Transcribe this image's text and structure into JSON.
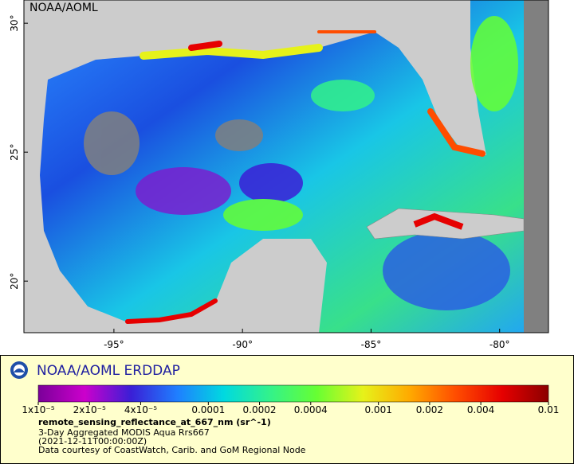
{
  "map": {
    "corner_label": "NOAA/AOML",
    "xlim": [
      -98.5,
      -78.1
    ],
    "ylim": [
      18,
      30.9
    ],
    "xticks": [
      {
        "value": -95,
        "label": "-95°"
      },
      {
        "value": -90,
        "label": "-90°"
      },
      {
        "value": -85,
        "label": "-85°"
      },
      {
        "value": -80,
        "label": "-80°"
      }
    ],
    "yticks": [
      {
        "value": 20,
        "label": "20°"
      },
      {
        "value": 25,
        "label": "25°"
      },
      {
        "value": 30,
        "label": "30°"
      }
    ]
  },
  "legend": {
    "title": "NOAA/AOML ERDDAP",
    "colorbar": {
      "scale": "log",
      "range": [
        1e-05,
        0.01
      ],
      "colors": [
        "#7a0099",
        "#cc00cc",
        "#3a1fd6",
        "#1f7fff",
        "#00d9e0",
        "#33f28a",
        "#66ff33",
        "#e6f21a",
        "#ffaa00",
        "#ff4d00",
        "#e60000",
        "#8b0000"
      ],
      "ticks": [
        {
          "value": 1e-05,
          "label": "1x10⁻⁵"
        },
        {
          "value": 2e-05,
          "label": "2x10⁻⁵"
        },
        {
          "value": 4e-05,
          "label": "4x10⁻⁵"
        },
        0.0001,
        0.0002,
        0.0004,
        0.001,
        0.002,
        0.004,
        0.01
      ]
    },
    "variable": "remote_sensing_reflectance_at_667_nm (sr^-1)",
    "dataset": "3-Day Aggregated MODIS Aqua Rrs667",
    "time": "(2021-12-11T00:00:00Z)",
    "credit": "Data courtesy of CoastWatch, Carib. and GoM Regional Node"
  }
}
